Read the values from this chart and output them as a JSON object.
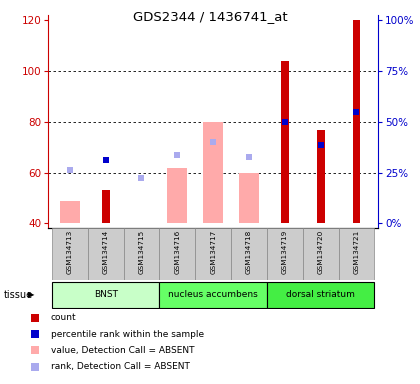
{
  "title": "GDS2344 / 1436741_at",
  "samples": [
    "GSM134713",
    "GSM134714",
    "GSM134715",
    "GSM134716",
    "GSM134717",
    "GSM134718",
    "GSM134719",
    "GSM134720",
    "GSM134721"
  ],
  "ylim_left": [
    38,
    122
  ],
  "yticks_left": [
    40,
    60,
    80,
    100,
    120
  ],
  "yticks_right": [
    0,
    25,
    50,
    75,
    100
  ],
  "yticklabels_right": [
    "0%",
    "25%",
    "50%",
    "75%",
    "100%"
  ],
  "bar_bottom": 40,
  "red_bars": [
    null,
    53,
    null,
    null,
    null,
    null,
    104,
    77,
    120
  ],
  "pink_bars": [
    49,
    null,
    null,
    62,
    80,
    60,
    null,
    null,
    null
  ],
  "blue_dots": [
    null,
    65,
    null,
    null,
    null,
    null,
    80,
    71,
    84
  ],
  "lavender_dots": [
    61,
    null,
    58,
    67,
    72,
    66,
    null,
    null,
    null
  ],
  "tissues": [
    {
      "label": "BNST",
      "start": 0,
      "end": 3,
      "color": "#c8ffc8"
    },
    {
      "label": "nucleus accumbens",
      "start": 3,
      "end": 6,
      "color": "#66ff66"
    },
    {
      "label": "dorsal striatum",
      "start": 6,
      "end": 9,
      "color": "#44ee44"
    }
  ],
  "tick_color_left": "#cc0000",
  "tick_color_right": "#0000cc"
}
